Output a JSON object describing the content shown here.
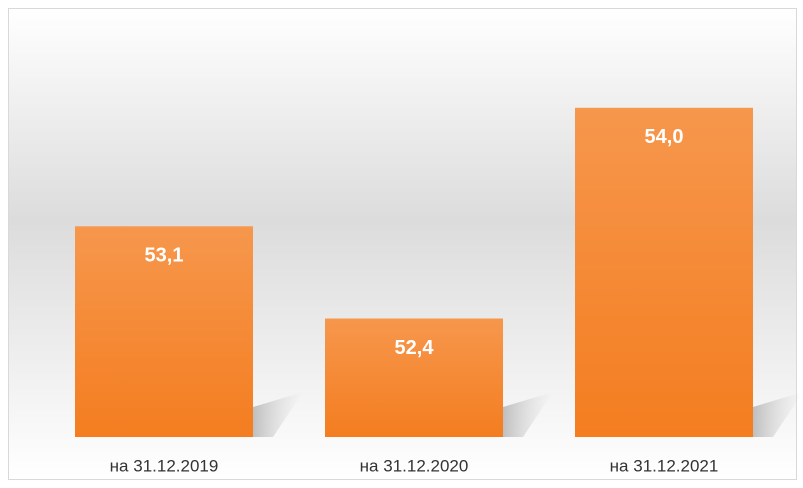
{
  "chart_data": {
    "type": "bar",
    "categories": [
      "на 31.12.2019",
      "на 31.12.2020",
      "на 31.12.2021"
    ],
    "values": [
      53.1,
      52.4,
      54.0
    ],
    "value_labels": [
      "53,1",
      "52,4",
      "54,0"
    ],
    "color": "#f47d20",
    "ylim": [
      51.5,
      54.5
    ]
  }
}
